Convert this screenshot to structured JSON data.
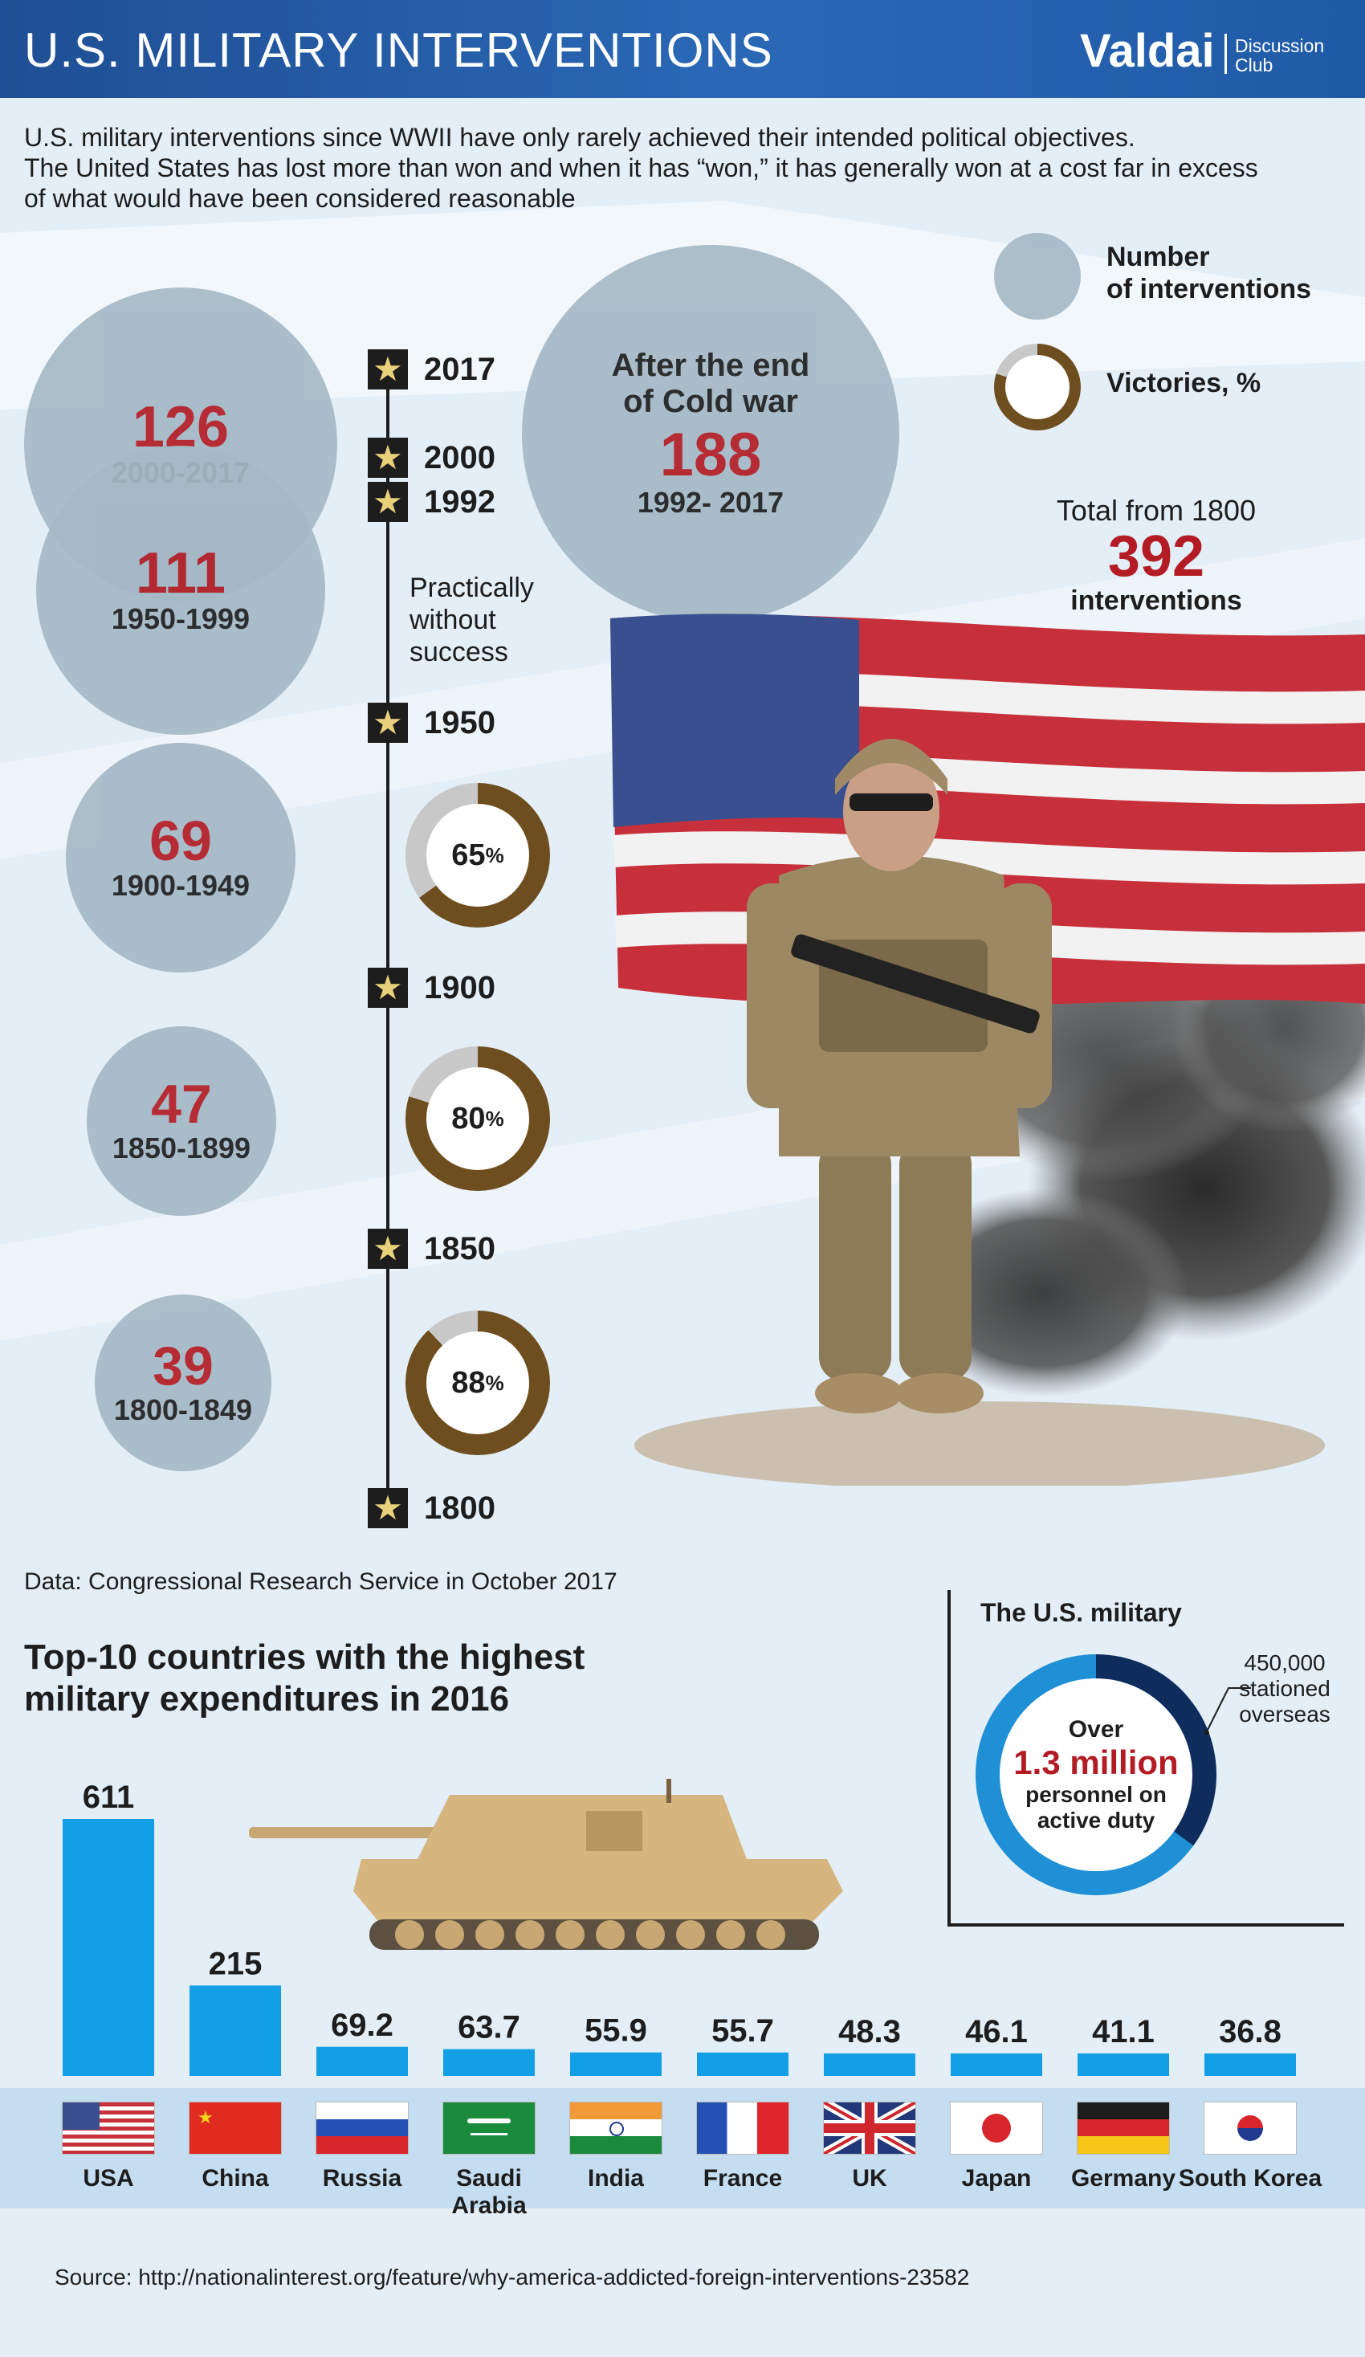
{
  "header": {
    "title": "U.S. MILITARY INTERVENTIONS",
    "logo": "Valdai",
    "logo_sub_1": "Discussion",
    "logo_sub_2": "Club"
  },
  "intro": {
    "line1": "U.S. military interventions since WWII have only rarely achieved their intended political objectives.",
    "line2": "The United States has lost more than won and when it has “won,” it has generally won at a cost far in excess",
    "line3": "of what would have been considered reasonable"
  },
  "legend": {
    "number_label_1": "Number",
    "number_label_2": "of interventions",
    "victories_label": "Victories, %"
  },
  "periods": [
    {
      "count": "126",
      "range": "2000-2017"
    },
    {
      "count": "111",
      "range": "1950-1999"
    },
    {
      "count": "69",
      "range": "1900-1949"
    },
    {
      "count": "47",
      "range": "1850-1899"
    },
    {
      "count": "39",
      "range": "1800-1849"
    }
  ],
  "cold_war": {
    "line1": "After the end",
    "line2": "of Cold war",
    "count": "188",
    "range": "1992- 2017"
  },
  "timeline": {
    "years": [
      "2017",
      "2000",
      "1992",
      "1950",
      "1900",
      "1850",
      "1800"
    ],
    "note_1": "Practically",
    "note_2": "without",
    "note_3": "success"
  },
  "victories": [
    {
      "label": "65",
      "pct_sign": "%",
      "value": 65
    },
    {
      "label": "80",
      "pct_sign": "%",
      "value": 80
    },
    {
      "label": "88",
      "pct_sign": "%",
      "value": 88
    }
  ],
  "total": {
    "label": "Total from 1800",
    "count": "392",
    "unit": "interventions"
  },
  "data_source": "Data: Congressional Research Service in October 2017",
  "expenditures": {
    "title_1": "Top-10 countries with the highest",
    "title_2": "military expenditures in 2016"
  },
  "chart_data": {
    "type": "bar",
    "title": "Top-10 countries with the highest military expenditures in 2016",
    "categories": [
      "USA",
      "China",
      "Russia",
      "Saudi Arabia",
      "India",
      "France",
      "UK",
      "Japan",
      "Germany",
      "South Korea"
    ],
    "values": [
      611,
      215,
      69.2,
      63.7,
      55.9,
      55.7,
      48.3,
      46.1,
      41.1,
      36.8
    ],
    "labels": [
      "611",
      "215",
      "69.2",
      "63.7",
      "55.9",
      "55.7",
      "48.3",
      "46.1",
      "41.1",
      "36.8"
    ],
    "ylim": [
      0,
      611
    ],
    "color": "#139fe6"
  },
  "us_military": {
    "title": "The U.S. military",
    "over": "Over",
    "amount": "1.3 million",
    "desc_1": "personnel on",
    "desc_2": "active duty",
    "overseas_1": "450,000",
    "overseas_2": "stationed",
    "overseas_3": "overseas",
    "overseas_fraction": 0.35
  },
  "source": "Source: http://nationalinterest.org/feature/why-america-addicted-foreign-interventions-23582",
  "colors": {
    "header_blue": "#2a68b6",
    "number_red": "#b31c24",
    "circle_gray": "#a5b8c6",
    "donut_brown": "#6e4e1e",
    "bar_blue": "#139fe6",
    "ring_dark": "#0e2c5c"
  }
}
